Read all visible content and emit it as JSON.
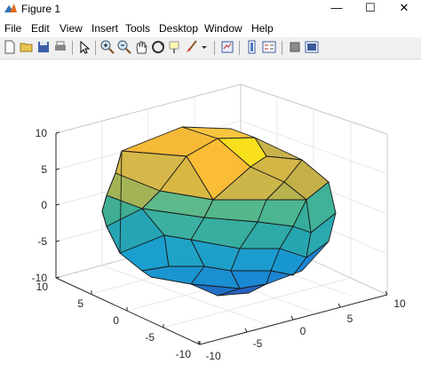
{
  "window": {
    "title": "Figure 1",
    "controls": {
      "minimize": "—",
      "maximize": "☐",
      "close": "✕"
    }
  },
  "menu": {
    "items": [
      "File",
      "Edit",
      "View",
      "Insert",
      "Tools",
      "Desktop",
      "Window",
      "Help"
    ]
  },
  "toolbar": {
    "icons": [
      "new-figure-icon",
      "open-file-icon",
      "save-icon",
      "print-icon",
      "edit-plot-icon",
      "zoom-in-icon",
      "zoom-out-icon",
      "pan-icon",
      "rotate-3d-icon",
      "data-cursor-icon",
      "brush-icon",
      "brush-menu-icon",
      "link-plot-icon",
      "insert-colorbar-icon",
      "insert-legend-icon",
      "hide-plot-tools-icon",
      "show-plot-tools-icon"
    ]
  },
  "axes": {
    "z_ticks": [
      "10",
      "5",
      "0",
      "-5",
      "-10"
    ],
    "y_ticks": [
      "10",
      "5",
      "0",
      "-5",
      "-10"
    ],
    "x_ticks": [
      "-10",
      "-5",
      "0",
      "5",
      "10"
    ]
  },
  "colors": {
    "yellow": "#f9e01c",
    "orange": "#f5b937",
    "olive": "#c9b24a",
    "green": "#5cb98a",
    "teal": "#2fa9a8",
    "blue": "#1a9fcf",
    "darkblue": "#1f70c4"
  }
}
